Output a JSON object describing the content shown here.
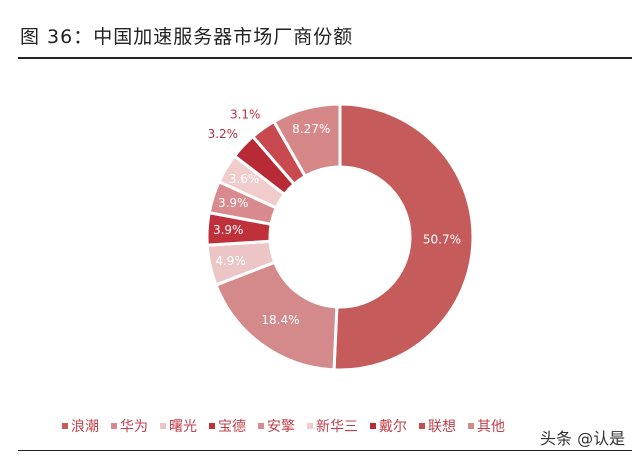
{
  "title": "图 36：中国加速服务器市场厂商份额",
  "watermark": "头条 @认是",
  "chart_data": {
    "type": "pie",
    "donut": true,
    "title": "图 36：中国加速服务器市场厂商份额",
    "legend_position": "bottom",
    "categories": [
      "浪潮",
      "华为",
      "曙光",
      "宝德",
      "安擎",
      "新华三",
      "戴尔",
      "联想",
      "其他"
    ],
    "values": [
      50.7,
      18.4,
      4.9,
      3.9,
      3.9,
      3.6,
      3.2,
      3.1,
      8.27
    ],
    "labels": [
      "50.7%",
      "18.4%",
      "4.9%",
      "3.9%",
      "3.9%",
      "3.6%",
      "3.2%",
      "3.1%",
      "8.27%"
    ],
    "colors": [
      "#c55b5b",
      "#d48a8a",
      "#ecc6c6",
      "#c0303a",
      "#d88a8e",
      "#f0cccc",
      "#b82a35",
      "#c84a50",
      "#d68888"
    ]
  }
}
